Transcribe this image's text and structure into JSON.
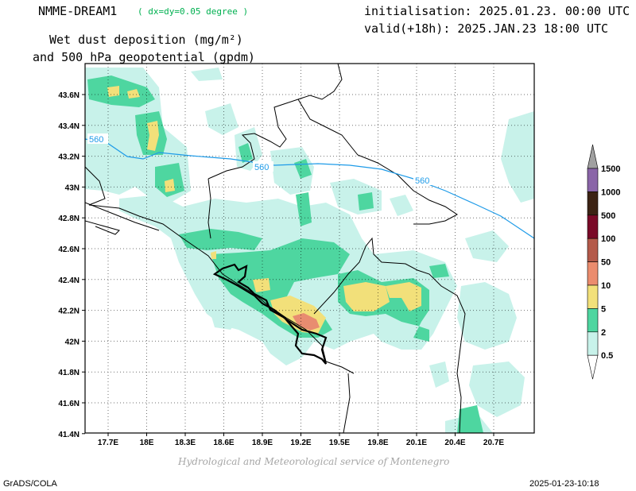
{
  "header": {
    "model_title": "NMME-DREAM1",
    "resolution": "( dx=dy=0.05 degree )",
    "init": "initialisation: 2025.01.23. 00:00 UTC",
    "valid": "valid(+18h): 2025.JAN.23 18:00 UTC",
    "var_line1": "Wet dust deposition (mg/m²)",
    "var_line2": "and 500 hPa geopotential (gpdm)"
  },
  "footer": {
    "credit": "Hydrological and Meteorological service of Montenegro",
    "left": "GrADS/COLA",
    "right": "2025-01-23-10:18"
  },
  "map": {
    "lat_labels": [
      "43.6N",
      "43.4N",
      "43.2N",
      "43N",
      "42.8N",
      "42.6N",
      "42.4N",
      "42.2N",
      "42N",
      "41.8N",
      "41.6N",
      "41.4N"
    ],
    "lon_labels": [
      "17.7E",
      "18E",
      "18.3E",
      "18.6E",
      "18.9E",
      "19.2E",
      "19.5E",
      "19.8E",
      "20.1E",
      "20.4E",
      "20.7E"
    ],
    "contour_label": "560",
    "contour_color": "#1e9be8",
    "grid": true
  },
  "legend": {
    "levels": [
      "1500",
      "1000",
      "500",
      "100",
      "50",
      "10",
      "5",
      "2",
      "0.5"
    ],
    "colors": [
      "#a0a0a0",
      "#8a65a8",
      "#3c2314",
      "#7a0a28",
      "#b45a4a",
      "#eb8c6e",
      "#f2e07a",
      "#4ed6a0",
      "#c8f2ea"
    ]
  }
}
